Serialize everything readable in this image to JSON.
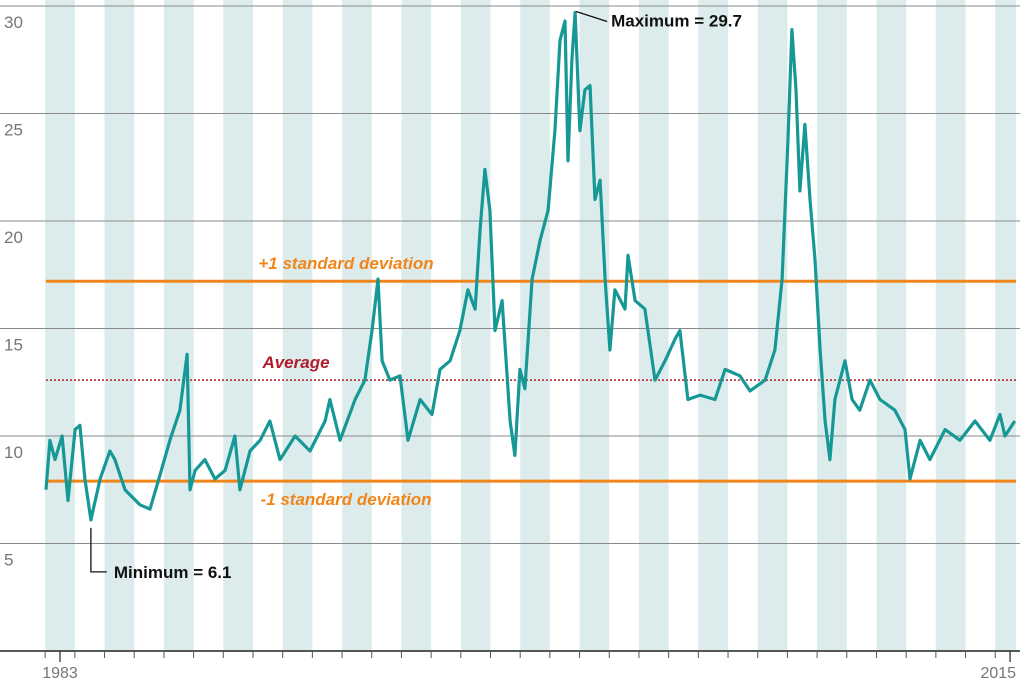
{
  "chart_data": {
    "type": "line",
    "title": "",
    "xlabel": "",
    "ylabel": "",
    "xlim": [
      1982.53,
      2015.2
    ],
    "ylim": [
      0,
      30
    ],
    "yticks": [
      5,
      10,
      15,
      20,
      25,
      30
    ],
    "xtick_labels": [
      {
        "year": 1983,
        "label": "1983"
      },
      {
        "year": 2015,
        "label": "2015"
      }
    ],
    "grid": true,
    "colors": {
      "line": "#169896",
      "stripe": "#dcecec",
      "sd": "#f0861b",
      "average": "#b01c2a",
      "grid": "#8a8a8a"
    },
    "reference_lines": [
      {
        "name": "plus-one-sd",
        "value": 17.2,
        "label": "+1 standard deviation",
        "style": "solid"
      },
      {
        "name": "average",
        "value": 12.6,
        "label": "Average",
        "style": "dotted"
      },
      {
        "name": "minus-one-sd",
        "value": 7.9,
        "label": "-1 standard deviation",
        "style": "solid"
      }
    ],
    "annotations": {
      "maximum": {
        "label": "Maximum = 29.7",
        "year": 2000.35,
        "value": 29.7
      },
      "minimum": {
        "label": "Minimum = 6.1",
        "year": 1984.04,
        "value": 6.1
      }
    },
    "series": [
      {
        "name": "value",
        "x": [
          1982.53,
          1982.66,
          1982.83,
          1983.07,
          1983.27,
          1983.51,
          1983.67,
          1983.84,
          1984.04,
          1984.35,
          1984.68,
          1984.85,
          1985.19,
          1985.69,
          1986.03,
          1986.37,
          1986.7,
          1987.04,
          1987.28,
          1987.38,
          1987.55,
          1987.88,
          1988.22,
          1988.56,
          1988.89,
          1989.06,
          1989.4,
          1989.74,
          1990.07,
          1990.41,
          1990.92,
          1991.42,
          1991.93,
          1992.09,
          1992.43,
          1992.94,
          1993.27,
          1993.51,
          1993.71,
          1993.85,
          1994.11,
          1994.45,
          1994.72,
          1995.13,
          1995.53,
          1995.8,
          1996.14,
          1996.47,
          1996.74,
          1996.98,
          1997.15,
          1997.31,
          1997.48,
          1997.65,
          1997.89,
          1998.16,
          1998.32,
          1998.49,
          1998.66,
          1998.9,
          1999.17,
          1999.44,
          1999.67,
          1999.84,
          2000.01,
          2000.11,
          2000.24,
          2000.35,
          2000.51,
          2000.68,
          2000.85,
          2001.02,
          2001.19,
          2001.36,
          2001.52,
          2001.69,
          2002.03,
          2002.13,
          2002.37,
          2002.7,
          2003.04,
          2003.38,
          2003.71,
          2003.88,
          2004.15,
          2004.56,
          2005.06,
          2005.4,
          2005.9,
          2006.24,
          2006.75,
          2007.08,
          2007.32,
          2007.52,
          2007.65,
          2007.79,
          2007.92,
          2008.09,
          2008.26,
          2008.43,
          2008.6,
          2008.77,
          2008.93,
          2009.1,
          2009.44,
          2009.68,
          2009.94,
          2010.28,
          2010.62,
          2011.12,
          2011.46,
          2011.63,
          2011.97,
          2012.3,
          2012.81,
          2013.31,
          2013.82,
          2014.32,
          2014.66,
          2014.83,
          2015.16
        ],
        "y": [
          7.5,
          9.8,
          8.9,
          10.0,
          7.0,
          10.3,
          10.5,
          8.0,
          6.1,
          8.0,
          9.3,
          8.9,
          7.5,
          6.8,
          6.6,
          8.2,
          9.8,
          11.2,
          13.8,
          7.5,
          8.4,
          8.9,
          8.0,
          8.4,
          10.0,
          7.5,
          9.3,
          9.8,
          10.7,
          8.9,
          10.0,
          9.3,
          10.7,
          11.7,
          9.8,
          11.7,
          12.6,
          14.9,
          17.3,
          13.5,
          12.6,
          12.8,
          9.8,
          11.7,
          11.0,
          13.1,
          13.5,
          14.9,
          16.8,
          15.9,
          19.6,
          22.4,
          20.5,
          14.9,
          16.3,
          10.7,
          9.1,
          13.1,
          12.2,
          17.3,
          19.1,
          20.5,
          24.2,
          28.4,
          29.3,
          22.8,
          27.5,
          29.7,
          24.2,
          26.1,
          26.3,
          21.0,
          21.9,
          17.3,
          14.0,
          16.8,
          15.9,
          18.4,
          16.3,
          15.9,
          12.6,
          13.5,
          14.5,
          14.9,
          11.7,
          11.9,
          11.7,
          13.1,
          12.8,
          12.1,
          12.6,
          14.0,
          17.3,
          23.8,
          28.9,
          26.1,
          21.4,
          24.5,
          21.0,
          18.2,
          14.0,
          10.7,
          8.9,
          11.7,
          13.5,
          11.7,
          11.2,
          12.6,
          11.7,
          11.2,
          10.3,
          8.0,
          9.8,
          8.9,
          10.3,
          9.8,
          10.7,
          9.8,
          11.0,
          10.0,
          10.7
        ]
      }
    ]
  }
}
